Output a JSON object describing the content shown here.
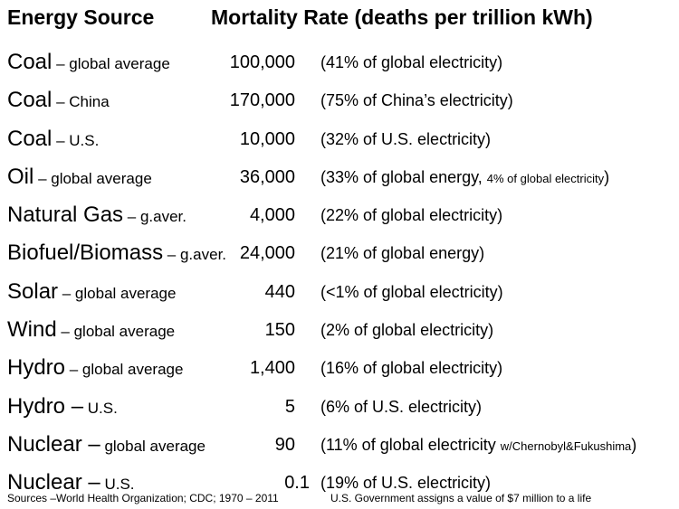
{
  "header": {
    "source_col": "Energy Source",
    "rate_col": "Mortality Rate (deaths per trillion kWh)"
  },
  "rows": [
    {
      "source": "Coal",
      "qualifier": " – global average",
      "rate": "100,000",
      "share": "(41% of global electricity)",
      "share_small": "",
      "share_end": ""
    },
    {
      "source": "Coal",
      "qualifier": " – China",
      "rate": "170,000",
      "share": "(75% of China’s electricity)",
      "share_small": "",
      "share_end": ""
    },
    {
      "source": "Coal",
      "qualifier": " – U.S.",
      "rate": "10,000",
      "share": "(32% of U.S. electricity)",
      "share_small": "",
      "share_end": ""
    },
    {
      "source": "Oil",
      "qualifier": " – global average",
      "rate": "36,000",
      "share": "(33% of global energy, ",
      "share_small": "4% of global electricity",
      "share_end": ")"
    },
    {
      "source": "Natural Gas",
      "qualifier": " – g.aver.",
      "rate": "4,000",
      "share": "(22% of global electricity)",
      "share_small": "",
      "share_end": ""
    },
    {
      "source": "Biofuel/Biomass",
      "qualifier": " – g.aver.",
      "rate": "24,000",
      "share": "(21% of global energy)",
      "share_small": "",
      "share_end": ""
    },
    {
      "source": "Solar",
      "qualifier": " – global average",
      "rate": "440",
      "share": "(<1% of global electricity)",
      "share_small": "",
      "share_end": ""
    },
    {
      "source": "Wind",
      "qualifier": " – global average",
      "rate": "150",
      "share": "(2% of global electricity)",
      "share_small": "",
      "share_end": ""
    },
    {
      "source": "Hydro",
      "qualifier": " – global average",
      "rate": "1,400",
      "share": "(16% of global electricity)",
      "share_small": "",
      "share_end": ""
    },
    {
      "source": "Hydro –",
      "qualifier": " U.S.",
      "rate": "5",
      "share": "(6% of U.S. electricity)",
      "share_small": "",
      "share_end": ""
    },
    {
      "source": "Nuclear –",
      "qualifier": " global average",
      "rate": "90",
      "share": "(11% of global electricity ",
      "share_small": "w/Chernobyl&Fukushima",
      "share_end": ")"
    },
    {
      "source": "Nuclear –",
      "qualifier": " U.S.",
      "rate": "0.1",
      "share": "(19% of U.S. electricity)",
      "share_small": "",
      "share_end": ""
    }
  ],
  "footer": {
    "sources": "Sources –World Health Organization; CDC; 1970 – 2011",
    "note": "U.S. Government assigns a value of $7 million to a life"
  }
}
